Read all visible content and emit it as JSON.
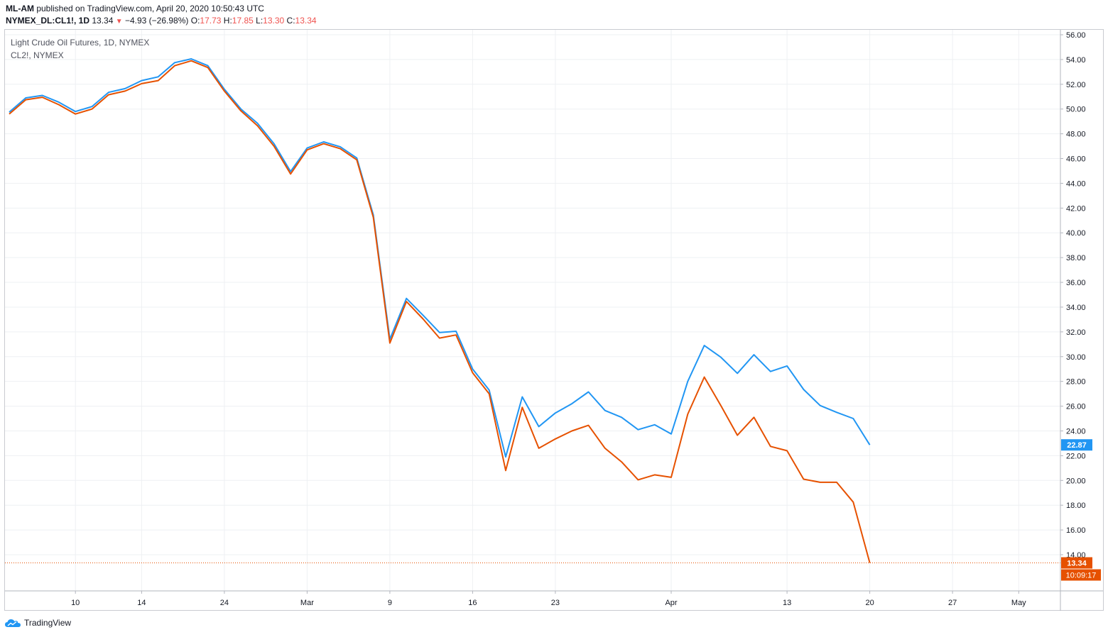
{
  "header": {
    "author": "ML-AM",
    "published": "published on TradingView.com, April 20, 2020 10:50:43 UTC",
    "symbol": "NYMEX_DL:CL1!, 1D",
    "last": "13.34",
    "change": "−4.93 (−26.98%)",
    "o_label": "O:",
    "o_value": "17.73",
    "h_label": "H:",
    "h_value": "17.85",
    "l_label": "L:",
    "l_value": "13.30",
    "c_label": "C:",
    "c_value": "13.34"
  },
  "footer": {
    "brand": "TradingView"
  },
  "chart_data": {
    "type": "line",
    "title": "Light Crude Oil Futures, 1D, NYMEX",
    "subtitle": "CL2!, NYMEX",
    "ylim": [
      12.2,
      56.6
    ],
    "y_ticks": [
      "56.00",
      "54.00",
      "52.00",
      "50.00",
      "48.00",
      "46.00",
      "44.00",
      "42.00",
      "40.00",
      "38.00",
      "36.00",
      "34.00",
      "32.00",
      "30.00",
      "28.00",
      "26.00",
      "24.00",
      "22.00",
      "20.00",
      "18.00",
      "16.00",
      "14.00"
    ],
    "x_ticks": [
      {
        "label": "10",
        "index": 4
      },
      {
        "label": "14",
        "index": 8
      },
      {
        "label": "24",
        "index": 13
      },
      {
        "label": "Mar",
        "index": 18
      },
      {
        "label": "9",
        "index": 23
      },
      {
        "label": "16",
        "index": 28
      },
      {
        "label": "23",
        "index": 33
      },
      {
        "label": "Apr",
        "index": 40
      },
      {
        "label": "13",
        "index": 47
      },
      {
        "label": "20",
        "index": 52
      },
      {
        "label": "27",
        "index": 57
      },
      {
        "label": "May",
        "index": 61
      }
    ],
    "series": [
      {
        "name": "CL2!",
        "color": "#2196f3",
        "values": [
          49.75,
          50.9,
          51.1,
          50.55,
          49.8,
          50.2,
          51.35,
          51.65,
          52.3,
          52.6,
          53.75,
          54.05,
          53.5,
          51.6,
          50.0,
          48.85,
          47.2,
          44.95,
          46.85,
          47.35,
          46.95,
          46.05,
          41.45,
          31.4,
          34.7,
          33.35,
          31.95,
          32.05,
          29.0,
          27.3,
          21.9,
          26.75,
          24.35,
          25.45,
          26.2,
          27.15,
          25.65,
          25.1,
          24.1,
          24.5,
          23.75,
          28.0,
          30.9,
          29.95,
          28.65,
          30.15,
          28.8,
          29.25,
          27.35,
          26.05,
          25.5,
          25.0,
          22.87
        ],
        "last_label": "22.87"
      },
      {
        "name": "CL1!",
        "color": "#e65100",
        "values": [
          49.6,
          50.75,
          50.95,
          50.35,
          49.6,
          50.0,
          51.15,
          51.45,
          52.05,
          52.3,
          53.5,
          53.9,
          53.35,
          51.45,
          49.85,
          48.65,
          47.0,
          44.75,
          46.7,
          47.2,
          46.8,
          45.9,
          41.25,
          31.1,
          34.45,
          33.05,
          31.5,
          31.75,
          28.7,
          27.0,
          20.8,
          25.9,
          22.6,
          23.35,
          24.0,
          24.45,
          22.6,
          21.5,
          20.05,
          20.45,
          20.25,
          25.35,
          28.35,
          26.05,
          23.65,
          25.1,
          22.75,
          22.4,
          20.1,
          19.85,
          19.85,
          18.25,
          13.34
        ],
        "last_label": "13.34"
      }
    ],
    "price_line": {
      "value": 13.34,
      "label": "13.34",
      "countdown": "10:09:17",
      "color": "#e65100"
    },
    "grid": true,
    "legend": "top-left"
  }
}
